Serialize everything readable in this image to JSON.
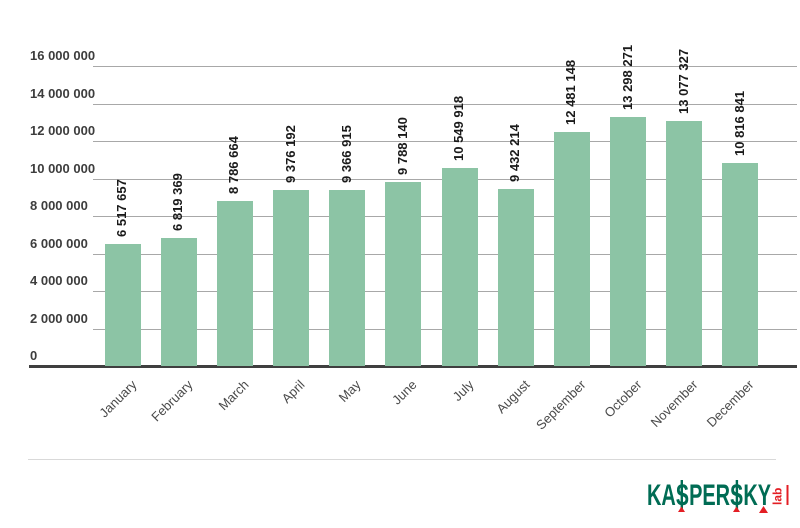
{
  "chart_data": {
    "type": "bar",
    "title": "",
    "xlabel": "",
    "ylabel": "",
    "grid": true,
    "legend": "none",
    "bar_color": "#8cc4a5",
    "label_rotation": -90,
    "category_rotation": -45,
    "categories": [
      "January",
      "February",
      "March",
      "April",
      "May",
      "June",
      "July",
      "August",
      "September",
      "October",
      "November",
      "December"
    ],
    "values": [
      6517657,
      6819369,
      8786664,
      9376192,
      9366915,
      9788140,
      10549918,
      9432214,
      12481148,
      13298271,
      13077327,
      10816841
    ],
    "value_labels": [
      "6 517 657",
      "6 819 369",
      "8 786 664",
      "9 376 192",
      "9 366 915",
      "9 788 140",
      "10 549 918",
      "9 432 214",
      "12 481 148",
      "13 298 271",
      "13 077 327",
      "10 816 841"
    ],
    "ylim": [
      0,
      16000000
    ],
    "ytick_interval": 2000000,
    "ytick_labels": [
      "0",
      "2 000 000",
      "4 000 000",
      "6 000 000",
      "8 000 000",
      "10 000 000",
      "12 000 000",
      "14 000 000",
      "16 000 000"
    ]
  },
  "footer": {
    "brand": "KASPERSKY",
    "brand_sub": "lab",
    "brand_color": "#006c54",
    "brand_accent": "#e31e24"
  }
}
